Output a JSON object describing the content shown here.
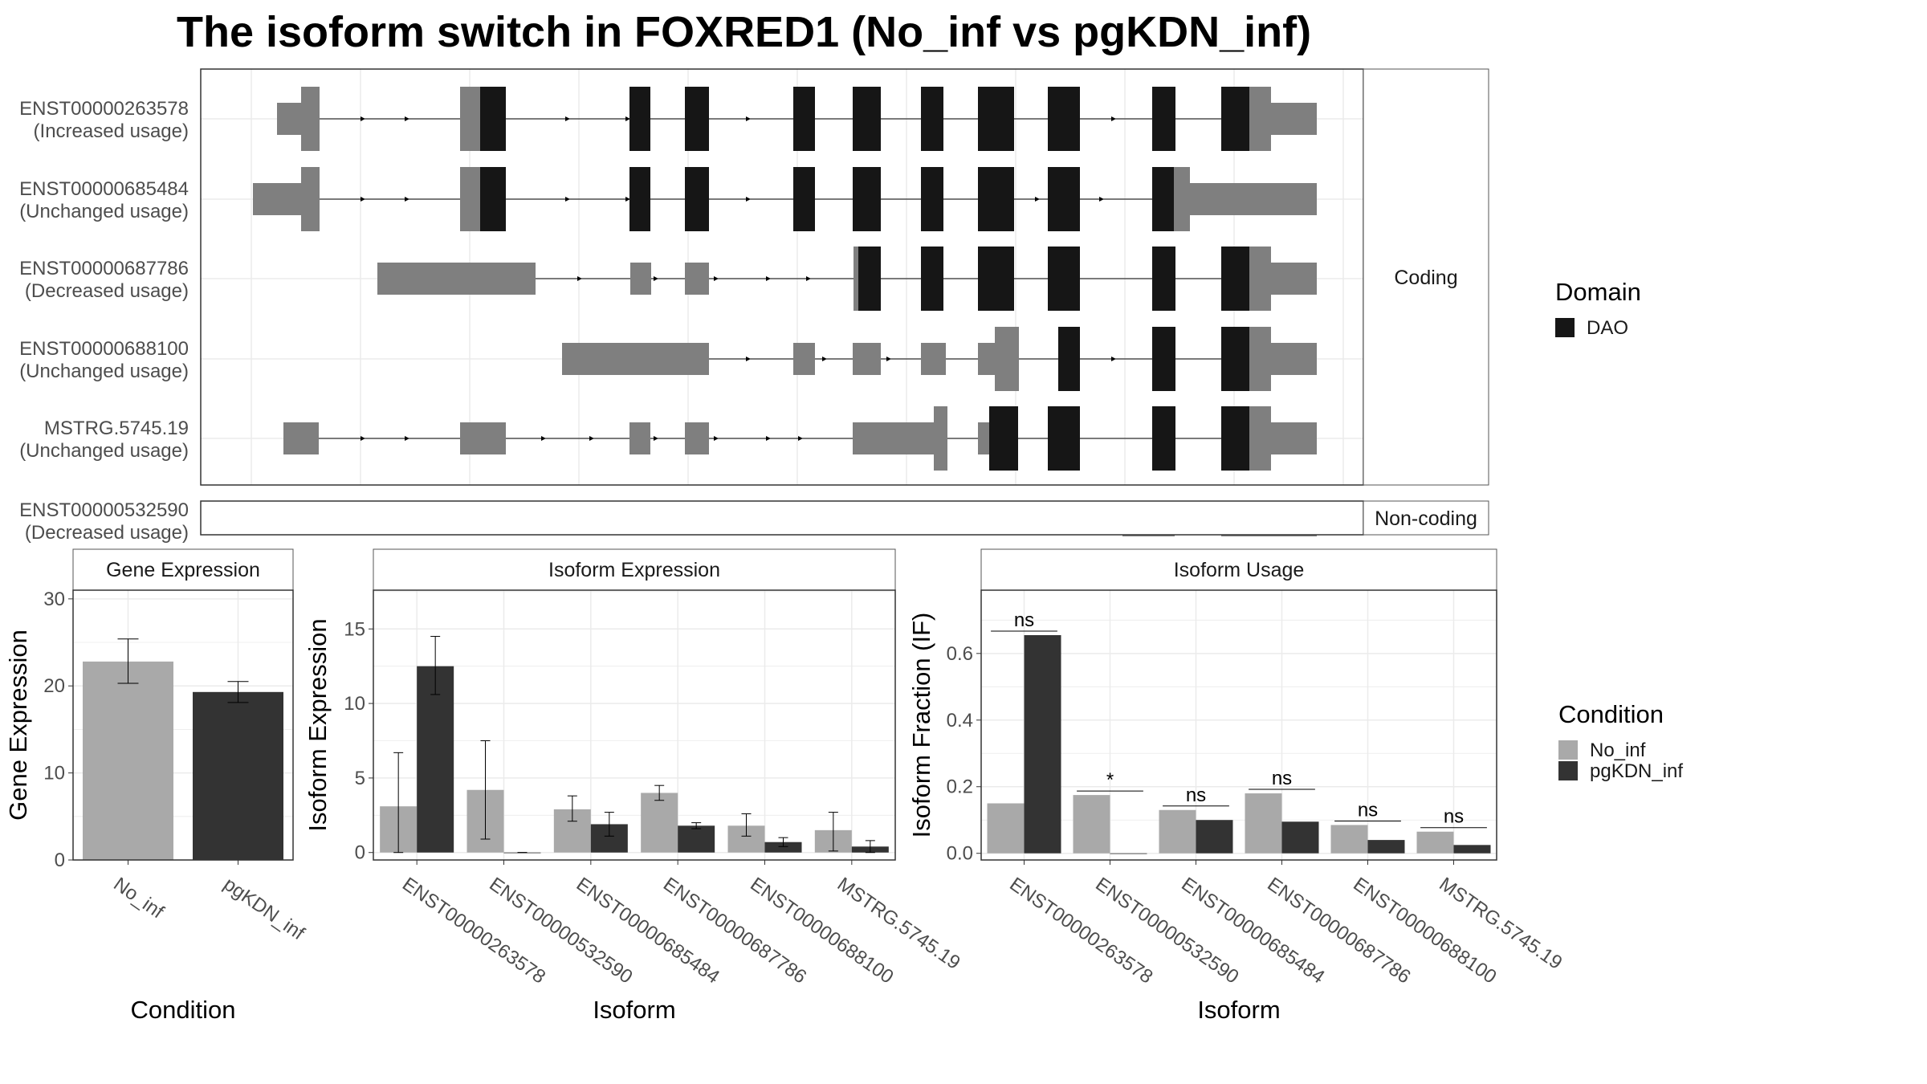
{
  "title": "The isoform switch in FOXRED1 (No_inf vs pgKDN_inf)",
  "colors": {
    "domain_dao": "#161616",
    "exon": "#7f7f7f",
    "no_inf": "#a9a9a9",
    "pgkdn_inf": "#333333",
    "grid": "#ebebeb",
    "panel_border": "#333333",
    "strip_border": "#555555"
  },
  "legends": {
    "domain": {
      "title": "Domain",
      "items": [
        {
          "label": "DAO",
          "color": "#161616"
        }
      ]
    },
    "condition": {
      "title": "Condition",
      "items": [
        {
          "label": "No_inf",
          "color": "#a9a9a9"
        },
        {
          "label": "pgKDN_inf",
          "color": "#333333"
        }
      ]
    }
  },
  "chart_data": [
    {
      "type": "other",
      "panel": "transcript-structure",
      "facets": [
        {
          "label": "Coding",
          "tracks": [
            {
              "id": "ENST00000263578",
              "status": "(Increased usage)"
            },
            {
              "id": "ENST00000685484",
              "status": "(Unchanged usage)"
            },
            {
              "id": "ENST00000687786",
              "status": "(Decreased usage)"
            },
            {
              "id": "ENST00000688100",
              "status": "(Unchanged usage)"
            },
            {
              "id": "MSTRG.5745.19",
              "status": "(Unchanged usage)"
            }
          ]
        },
        {
          "label": "Non-coding",
          "tracks": [
            {
              "id": "ENST00000532590",
              "status": "(Decreased usage)"
            }
          ]
        }
      ]
    },
    {
      "type": "bar",
      "panel": "gene-expression",
      "title": "Gene Expression",
      "xlabel": "Condition",
      "ylabel": "Gene Expression",
      "categories": [
        "No_inf",
        "pgKDN_inf"
      ],
      "values": [
        22.8,
        19.3
      ],
      "err_low": [
        20.3,
        18.1
      ],
      "err_high": [
        25.4,
        20.5
      ],
      "ylim": [
        0,
        31
      ],
      "yticks": [
        "0",
        "10",
        "20",
        "30"
      ]
    },
    {
      "type": "bar",
      "panel": "isoform-expression",
      "title": "Isoform Expression",
      "xlabel": "Isoform",
      "ylabel": "Isoform Expression",
      "categories": [
        "ENST00000263578",
        "ENST00000532590",
        "ENST00000685484",
        "ENST00000687786",
        "ENST00000688100",
        "MSTRG.5745.19"
      ],
      "series": [
        {
          "name": "No_inf",
          "values": [
            3.1,
            4.2,
            2.9,
            4.0,
            1.8,
            1.5
          ],
          "err_low": [
            0.0,
            0.9,
            2.1,
            3.5,
            1.1,
            0.1
          ],
          "err_high": [
            6.7,
            7.5,
            3.8,
            4.5,
            2.6,
            2.7
          ]
        },
        {
          "name": "pgKDN_inf",
          "values": [
            12.5,
            0.0,
            1.9,
            1.8,
            0.7,
            0.4
          ],
          "err_low": [
            10.6,
            0.0,
            1.1,
            1.6,
            0.4,
            0.0
          ],
          "err_high": [
            14.5,
            0.0,
            2.7,
            2.0,
            1.0,
            0.8
          ]
        }
      ],
      "ylim": [
        -0.5,
        17.6
      ],
      "yticks": [
        "0",
        "5",
        "10",
        "15"
      ]
    },
    {
      "type": "bar",
      "panel": "isoform-usage",
      "title": "Isoform Usage",
      "xlabel": "Isoform",
      "ylabel": "Isoform Fraction (IF)",
      "categories": [
        "ENST00000263578",
        "ENST00000532590",
        "ENST00000685484",
        "ENST00000687786",
        "ENST00000688100",
        "MSTRG.5745.19"
      ],
      "series": [
        {
          "name": "No_inf",
          "values": [
            0.15,
            0.175,
            0.13,
            0.18,
            0.085,
            0.065
          ]
        },
        {
          "name": "pgKDN_inf",
          "values": [
            0.655,
            0.0,
            0.1,
            0.095,
            0.04,
            0.025
          ]
        }
      ],
      "significance": [
        "ns",
        "*",
        "ns",
        "ns",
        "ns",
        "ns"
      ],
      "ylim": [
        -0.02,
        0.79
      ],
      "yticks": [
        "0.0",
        "0.2",
        "0.4",
        "0.6"
      ]
    }
  ]
}
